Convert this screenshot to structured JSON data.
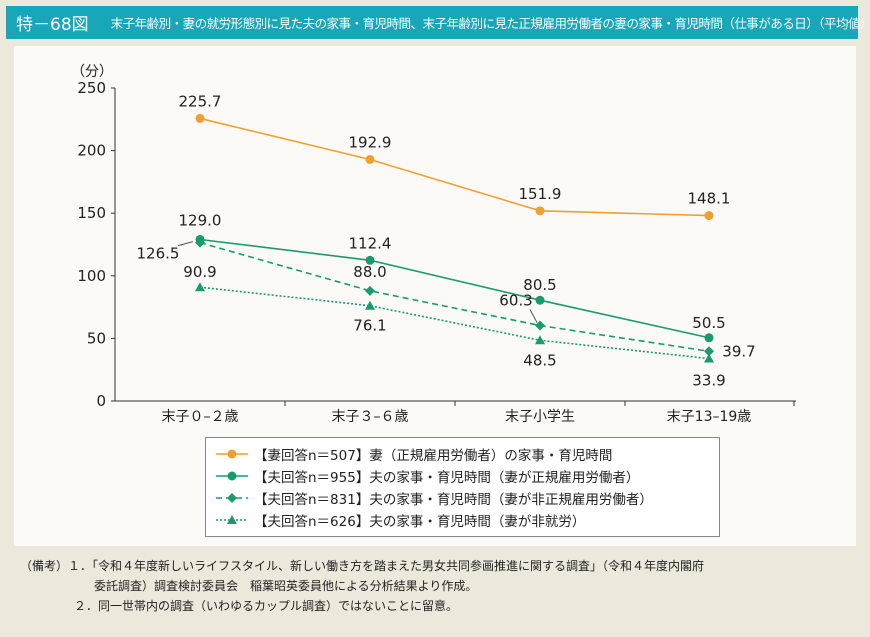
{
  "title": {
    "number": "特－68図",
    "text": "末子年齢別・妻の就労形態別に見た夫の家事・育児時間、末子年齢別に見た正規雇用労働者の妻の家事・育児時間（仕事がある日）（平均値）"
  },
  "chart_data": {
    "type": "line",
    "ylabel": "（分）",
    "ylim": [
      0,
      250
    ],
    "yticks": [
      0,
      50,
      100,
      150,
      200,
      250
    ],
    "categories": [
      "末子０–２歳",
      "末子３–６歳",
      "末子小学生",
      "末子13–19歳"
    ],
    "legend_position": "bottom",
    "grid": false,
    "series": [
      {
        "name": "【妻回答n＝507】妻（正規雇用労働者）の家事・育児時間",
        "values": [
          225.7,
          192.9,
          151.9,
          148.1
        ],
        "labels": [
          "225.7",
          "192.9",
          "151.9",
          "148.1"
        ],
        "color": "#f0a032",
        "style": "solid",
        "marker": "circle"
      },
      {
        "name": "【夫回答n＝955】夫の家事・育児時間（妻が正規雇用労働者）",
        "values": [
          129.0,
          112.4,
          80.5,
          50.5
        ],
        "labels": [
          "129.0",
          "112.4",
          "80.5",
          "50.5"
        ],
        "color": "#1a9b6e",
        "style": "solid",
        "marker": "circle"
      },
      {
        "name": "【夫回答n＝831】夫の家事・育児時間（妻が非正規雇用労働者）",
        "values": [
          126.5,
          88.0,
          60.3,
          39.7
        ],
        "labels": [
          "126.5",
          "88.0",
          "60.3",
          "39.7"
        ],
        "color": "#1a9b6e",
        "style": "dashed",
        "marker": "diamond"
      },
      {
        "name": "【夫回答n＝626】夫の家事・育児時間（妻が非就労）",
        "values": [
          90.9,
          76.1,
          48.5,
          33.9
        ],
        "labels": [
          "90.9",
          "76.1",
          "48.5",
          "33.9"
        ],
        "color": "#1a9b6e",
        "style": "dotted",
        "marker": "triangle"
      }
    ]
  },
  "notes": [
    "（備考）１．「令和４年度新しいライフスタイル、新しい働き方を踏まえた男女共同参画推進に関する調査」（令和４年度内閣府",
    "委託調査）調査検討委員会　稲葉昭英委員他による分析結果より作成。",
    "２．同一世帯内の調査（いわゆるカップル調査）ではないことに留意。"
  ]
}
